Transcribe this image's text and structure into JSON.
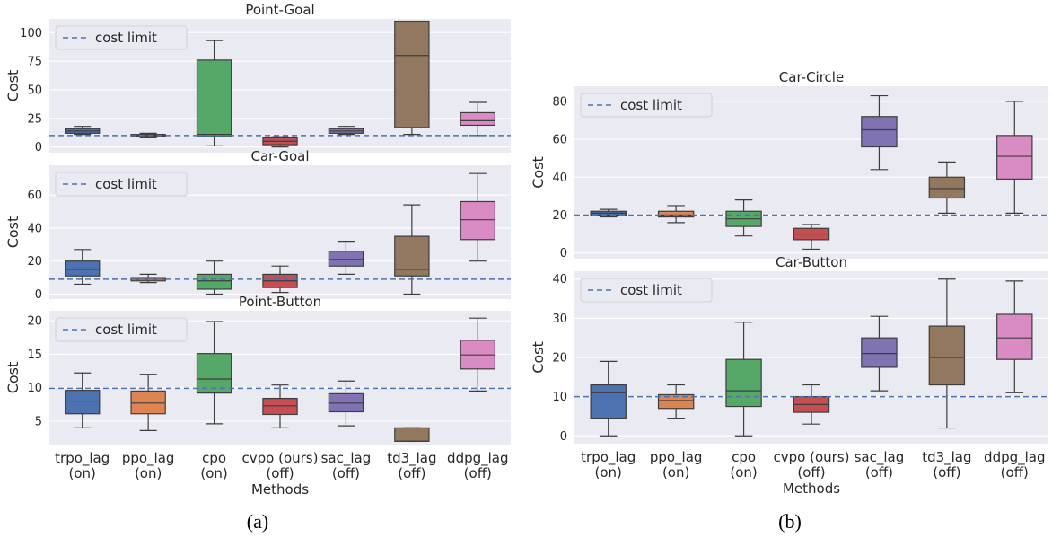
{
  "figure": {
    "caption_a": "(a)",
    "caption_b": "(b)",
    "methods_label": "Methods",
    "cost_label": "Cost",
    "legend_label": "cost limit"
  },
  "methods": [
    {
      "name": "trpo_lag",
      "mode": "(on)"
    },
    {
      "name": "ppo_lag",
      "mode": "(on)"
    },
    {
      "name": "cpo",
      "mode": "(on)"
    },
    {
      "name": "cvpo (ours)",
      "mode": "(off)"
    },
    {
      "name": "sac_lag",
      "mode": "(off)"
    },
    {
      "name": "td3_lag",
      "mode": "(off)"
    },
    {
      "name": "ddpg_lag",
      "mode": "(off)"
    }
  ],
  "colors": [
    "#4c72b0",
    "#dd8452",
    "#55a868",
    "#c44e52",
    "#8172b3",
    "#937860",
    "#da8bc3"
  ],
  "chart_data": [
    {
      "type": "box",
      "title": "Point-Goal",
      "ylabel": "Cost",
      "xlabel": "",
      "ylim": [
        -5,
        112
      ],
      "yticks": [
        0,
        25,
        50,
        75,
        100
      ],
      "cost_limit": 10,
      "categories": [
        "trpo_lag (on)",
        "ppo_lag (on)",
        "cpo (on)",
        "cvpo (ours) (off)",
        "sac_lag (off)",
        "td3_lag (off)",
        "ddpg_lag (off)"
      ],
      "boxes": [
        {
          "whislo": 11,
          "q1": 12,
          "med": 14,
          "q3": 16,
          "whishi": 18
        },
        {
          "whislo": 8,
          "q1": 9,
          "med": 10,
          "q3": 11,
          "whishi": 12
        },
        {
          "whislo": 1,
          "q1": 9,
          "med": 11,
          "q3": 76,
          "whishi": 93
        },
        {
          "whislo": 0,
          "q1": 2,
          "med": 5,
          "q3": 8,
          "whishi": 9
        },
        {
          "whislo": 11,
          "q1": 12,
          "med": 14,
          "q3": 16,
          "whishi": 18
        },
        {
          "whislo": 11,
          "q1": 17,
          "med": 80,
          "q3": 110,
          "whishi": 110
        },
        {
          "whislo": 10,
          "q1": 19,
          "med": 23,
          "q3": 30,
          "whishi": 39
        }
      ],
      "legend": "top-left",
      "grid": true
    },
    {
      "type": "box",
      "title": "Car-Goal",
      "ylabel": "Cost",
      "xlabel": "",
      "ylim": [
        -3,
        78
      ],
      "yticks": [
        0,
        20,
        40,
        60
      ],
      "cost_limit": 9,
      "categories": [
        "trpo_lag (on)",
        "ppo_lag (on)",
        "cpo (on)",
        "cvpo (ours) (off)",
        "sac_lag (off)",
        "td3_lag (off)",
        "ddpg_lag (off)"
      ],
      "boxes": [
        {
          "whislo": 6,
          "q1": 11,
          "med": 15,
          "q3": 20,
          "whishi": 27
        },
        {
          "whislo": 7,
          "q1": 8,
          "med": 9,
          "q3": 10,
          "whishi": 12
        },
        {
          "whislo": 0,
          "q1": 3,
          "med": 8,
          "q3": 12,
          "whishi": 20
        },
        {
          "whislo": 1,
          "q1": 4,
          "med": 8,
          "q3": 12,
          "whishi": 17
        },
        {
          "whislo": 12,
          "q1": 17,
          "med": 21,
          "q3": 26,
          "whishi": 32
        },
        {
          "whislo": 0,
          "q1": 11,
          "med": 15,
          "q3": 35,
          "whishi": 54
        },
        {
          "whislo": 20,
          "q1": 33,
          "med": 45,
          "q3": 56,
          "whishi": 73
        }
      ],
      "legend": "top-left",
      "grid": true
    },
    {
      "type": "box",
      "title": "Point-Button",
      "ylabel": "Cost",
      "xlabel": "Methods",
      "ylim": [
        1.5,
        21.5
      ],
      "yticks": [
        5,
        10,
        15,
        20
      ],
      "cost_limit": 9.9,
      "categories": [
        "trpo_lag (on)",
        "ppo_lag (on)",
        "cpo (on)",
        "cvpo (ours) (off)",
        "sac_lag (off)",
        "td3_lag (off)",
        "ddpg_lag (off)"
      ],
      "boxes": [
        {
          "whislo": 4,
          "q1": 6.1,
          "med": 8,
          "q3": 9.6,
          "whishi": 12.2
        },
        {
          "whislo": 3.6,
          "q1": 6.1,
          "med": 7.7,
          "q3": 9.5,
          "whishi": 12
        },
        {
          "whislo": 4.6,
          "q1": 9.2,
          "med": 11.3,
          "q3": 15.1,
          "whishi": 19.9
        },
        {
          "whislo": 4,
          "q1": 6,
          "med": 7.3,
          "q3": 8.4,
          "whishi": 10.4
        },
        {
          "whislo": 4.3,
          "q1": 6.4,
          "med": 7.7,
          "q3": 9.1,
          "whishi": 11
        },
        {
          "whislo": 2,
          "q1": 2,
          "med": 2,
          "q3": 4,
          "whishi": 4
        },
        {
          "whislo": 9.5,
          "q1": 12.8,
          "med": 14.9,
          "q3": 17.1,
          "whishi": 20.4
        }
      ],
      "legend": "top-left",
      "grid": true
    },
    {
      "type": "box",
      "title": "Car-Circle",
      "ylabel": "Cost",
      "xlabel": "",
      "ylim": [
        -3,
        88
      ],
      "yticks": [
        0,
        20,
        40,
        60,
        80
      ],
      "cost_limit": 20,
      "categories": [
        "trpo_lag (on)",
        "ppo_lag (on)",
        "cpo (on)",
        "cvpo (ours) (off)",
        "sac_lag (off)",
        "td3_lag (off)",
        "ddpg_lag (off)"
      ],
      "boxes": [
        {
          "whislo": 19,
          "q1": 20,
          "med": 21,
          "q3": 22,
          "whishi": 23
        },
        {
          "whislo": 16,
          "q1": 19,
          "med": 20,
          "q3": 22,
          "whishi": 25
        },
        {
          "whislo": 9,
          "q1": 14,
          "med": 18,
          "q3": 22,
          "whishi": 28
        },
        {
          "whislo": 2,
          "q1": 7,
          "med": 10,
          "q3": 13,
          "whishi": 15
        },
        {
          "whislo": 44,
          "q1": 56,
          "med": 65,
          "q3": 72,
          "whishi": 83
        },
        {
          "whislo": 21,
          "q1": 29,
          "med": 34,
          "q3": 40,
          "whishi": 48
        },
        {
          "whislo": 21,
          "q1": 39,
          "med": 51,
          "q3": 62,
          "whishi": 80
        }
      ],
      "legend": "top-left",
      "grid": true
    },
    {
      "type": "box",
      "title": "Car-Button",
      "ylabel": "Cost",
      "xlabel": "Methods",
      "ylim": [
        -2,
        42
      ],
      "yticks": [
        0,
        10,
        20,
        30,
        40
      ],
      "cost_limit": 10,
      "categories": [
        "trpo_lag (on)",
        "ppo_lag (on)",
        "cpo (on)",
        "cvpo (ours) (off)",
        "sac_lag (off)",
        "td3_lag (off)",
        "ddpg_lag (off)"
      ],
      "boxes": [
        {
          "whislo": 0,
          "q1": 4.5,
          "med": 11,
          "q3": 13,
          "whishi": 19
        },
        {
          "whislo": 4.5,
          "q1": 7,
          "med": 9,
          "q3": 10.5,
          "whishi": 13
        },
        {
          "whislo": 0,
          "q1": 7.5,
          "med": 11.5,
          "q3": 19.5,
          "whishi": 29
        },
        {
          "whislo": 3,
          "q1": 6,
          "med": 8,
          "q3": 10,
          "whishi": 13
        },
        {
          "whislo": 11.5,
          "q1": 17.5,
          "med": 21,
          "q3": 25,
          "whishi": 30.5
        },
        {
          "whislo": 2,
          "q1": 13,
          "med": 20,
          "q3": 28,
          "whishi": 40
        },
        {
          "whislo": 11,
          "q1": 19.5,
          "med": 25,
          "q3": 31,
          "whishi": 39.5
        }
      ],
      "legend": "top-left",
      "grid": true
    }
  ]
}
